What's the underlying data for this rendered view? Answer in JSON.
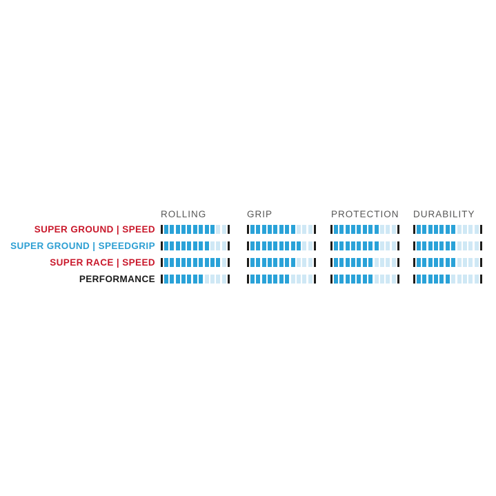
{
  "chart_data": {
    "type": "bar",
    "subtype": "segmented-rating-bars",
    "title": "",
    "categories": [
      "ROLLING",
      "GRIP",
      "PROTECTION",
      "DURABILITY"
    ],
    "scale": {
      "min": 0,
      "max": 11,
      "segments_per_bar": 11
    },
    "series": [
      {
        "name": "SUPER GROUND | SPEED",
        "label_color": "#c9182b",
        "values": [
          9,
          8,
          8,
          7
        ]
      },
      {
        "name": "SUPER GROUND | SPEEDGRIP",
        "label_color": "#2d9fd3",
        "values": [
          8,
          9,
          8,
          7
        ]
      },
      {
        "name": "SUPER RACE | SPEED",
        "label_color": "#c9182b",
        "values": [
          10,
          8,
          7,
          7
        ]
      },
      {
        "name": "PERFORMANCE",
        "label_color": "#1a1a1a",
        "values": [
          7,
          7,
          7,
          6
        ]
      }
    ],
    "colors": {
      "segment_filled": "#2aa2d8",
      "segment_empty": "#cfe8f5",
      "end_tick": "#1d1d1b",
      "header_text": "#575756",
      "background": "#ffffff"
    },
    "legend_position": "row-labels-left",
    "grid": false
  }
}
